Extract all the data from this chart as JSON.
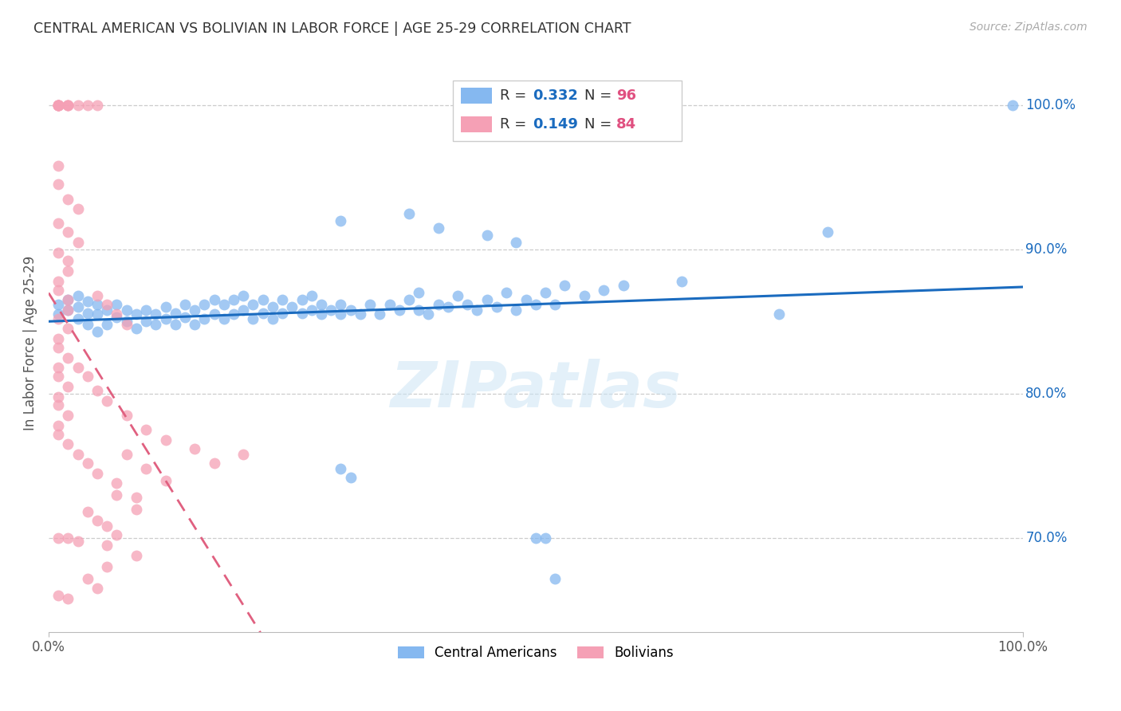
{
  "title": "CENTRAL AMERICAN VS BOLIVIAN IN LABOR FORCE | AGE 25-29 CORRELATION CHART",
  "source": "Source: ZipAtlas.com",
  "ylabel": "In Labor Force | Age 25-29",
  "ytick_labels": [
    "70.0%",
    "80.0%",
    "90.0%",
    "100.0%"
  ],
  "ytick_values": [
    0.7,
    0.8,
    0.9,
    1.0
  ],
  "xlim": [
    0.0,
    1.0
  ],
  "ylim": [
    0.635,
    1.035
  ],
  "blue_color": "#85b8f0",
  "pink_color": "#f5a0b5",
  "blue_line_color": "#1a6bbf",
  "pink_line_color": "#e06080",
  "pink_line_dash": "#e090a8",
  "R_blue": 0.332,
  "N_blue": 96,
  "R_pink": 0.149,
  "N_pink": 84,
  "legend_R_color": "#1a6bbf",
  "legend_N_color": "#e05080",
  "watermark": "ZIPatlas",
  "blue_scatter": [
    [
      0.01,
      0.855
    ],
    [
      0.01,
      0.862
    ],
    [
      0.02,
      0.858
    ],
    [
      0.02,
      0.865
    ],
    [
      0.03,
      0.852
    ],
    [
      0.03,
      0.86
    ],
    [
      0.03,
      0.868
    ],
    [
      0.04,
      0.848
    ],
    [
      0.04,
      0.856
    ],
    [
      0.04,
      0.864
    ],
    [
      0.05,
      0.843
    ],
    [
      0.05,
      0.855
    ],
    [
      0.05,
      0.862
    ],
    [
      0.06,
      0.848
    ],
    [
      0.06,
      0.858
    ],
    [
      0.07,
      0.853
    ],
    [
      0.07,
      0.862
    ],
    [
      0.08,
      0.85
    ],
    [
      0.08,
      0.858
    ],
    [
      0.09,
      0.845
    ],
    [
      0.09,
      0.855
    ],
    [
      0.1,
      0.85
    ],
    [
      0.1,
      0.858
    ],
    [
      0.11,
      0.848
    ],
    [
      0.11,
      0.855
    ],
    [
      0.12,
      0.852
    ],
    [
      0.12,
      0.86
    ],
    [
      0.13,
      0.848
    ],
    [
      0.13,
      0.856
    ],
    [
      0.14,
      0.853
    ],
    [
      0.14,
      0.862
    ],
    [
      0.15,
      0.848
    ],
    [
      0.15,
      0.858
    ],
    [
      0.16,
      0.852
    ],
    [
      0.16,
      0.862
    ],
    [
      0.17,
      0.855
    ],
    [
      0.17,
      0.865
    ],
    [
      0.18,
      0.852
    ],
    [
      0.18,
      0.862
    ],
    [
      0.19,
      0.855
    ],
    [
      0.19,
      0.865
    ],
    [
      0.2,
      0.858
    ],
    [
      0.2,
      0.868
    ],
    [
      0.21,
      0.852
    ],
    [
      0.21,
      0.862
    ],
    [
      0.22,
      0.856
    ],
    [
      0.22,
      0.865
    ],
    [
      0.23,
      0.852
    ],
    [
      0.23,
      0.86
    ],
    [
      0.24,
      0.856
    ],
    [
      0.24,
      0.865
    ],
    [
      0.25,
      0.86
    ],
    [
      0.26,
      0.856
    ],
    [
      0.26,
      0.865
    ],
    [
      0.27,
      0.858
    ],
    [
      0.27,
      0.868
    ],
    [
      0.28,
      0.855
    ],
    [
      0.28,
      0.862
    ],
    [
      0.29,
      0.858
    ],
    [
      0.3,
      0.855
    ],
    [
      0.3,
      0.862
    ],
    [
      0.31,
      0.858
    ],
    [
      0.32,
      0.855
    ],
    [
      0.33,
      0.862
    ],
    [
      0.34,
      0.855
    ],
    [
      0.35,
      0.862
    ],
    [
      0.36,
      0.858
    ],
    [
      0.37,
      0.865
    ],
    [
      0.38,
      0.858
    ],
    [
      0.38,
      0.87
    ],
    [
      0.39,
      0.855
    ],
    [
      0.4,
      0.862
    ],
    [
      0.41,
      0.86
    ],
    [
      0.42,
      0.868
    ],
    [
      0.43,
      0.862
    ],
    [
      0.44,
      0.858
    ],
    [
      0.45,
      0.865
    ],
    [
      0.46,
      0.86
    ],
    [
      0.47,
      0.87
    ],
    [
      0.48,
      0.858
    ],
    [
      0.49,
      0.865
    ],
    [
      0.5,
      0.862
    ],
    [
      0.51,
      0.87
    ],
    [
      0.52,
      0.862
    ],
    [
      0.53,
      0.875
    ],
    [
      0.55,
      0.868
    ],
    [
      0.57,
      0.872
    ],
    [
      0.59,
      0.875
    ],
    [
      0.3,
      0.748
    ],
    [
      0.31,
      0.742
    ],
    [
      0.5,
      0.7
    ],
    [
      0.51,
      0.7
    ],
    [
      0.52,
      0.672
    ],
    [
      0.65,
      0.878
    ],
    [
      0.75,
      0.855
    ],
    [
      0.8,
      0.912
    ],
    [
      0.99,
      1.0
    ],
    [
      0.3,
      0.92
    ],
    [
      0.37,
      0.925
    ],
    [
      0.4,
      0.915
    ],
    [
      0.45,
      0.91
    ],
    [
      0.48,
      0.905
    ]
  ],
  "pink_scatter": [
    [
      0.01,
      1.0
    ],
    [
      0.01,
      1.0
    ],
    [
      0.01,
      1.0
    ],
    [
      0.01,
      1.0
    ],
    [
      0.01,
      1.0
    ],
    [
      0.01,
      1.0
    ],
    [
      0.02,
      1.0
    ],
    [
      0.02,
      1.0
    ],
    [
      0.02,
      1.0
    ],
    [
      0.03,
      1.0
    ],
    [
      0.04,
      1.0
    ],
    [
      0.05,
      1.0
    ],
    [
      0.01,
      0.958
    ],
    [
      0.01,
      0.945
    ],
    [
      0.02,
      0.935
    ],
    [
      0.03,
      0.928
    ],
    [
      0.01,
      0.918
    ],
    [
      0.02,
      0.912
    ],
    [
      0.03,
      0.905
    ],
    [
      0.01,
      0.898
    ],
    [
      0.02,
      0.892
    ],
    [
      0.02,
      0.885
    ],
    [
      0.01,
      0.878
    ],
    [
      0.01,
      0.872
    ],
    [
      0.02,
      0.865
    ],
    [
      0.02,
      0.858
    ],
    [
      0.01,
      0.852
    ],
    [
      0.02,
      0.845
    ],
    [
      0.01,
      0.838
    ],
    [
      0.01,
      0.832
    ],
    [
      0.02,
      0.825
    ],
    [
      0.01,
      0.818
    ],
    [
      0.01,
      0.812
    ],
    [
      0.02,
      0.805
    ],
    [
      0.01,
      0.798
    ],
    [
      0.01,
      0.792
    ],
    [
      0.02,
      0.785
    ],
    [
      0.01,
      0.778
    ],
    [
      0.01,
      0.772
    ],
    [
      0.02,
      0.765
    ],
    [
      0.03,
      0.758
    ],
    [
      0.04,
      0.752
    ],
    [
      0.05,
      0.868
    ],
    [
      0.06,
      0.862
    ],
    [
      0.07,
      0.855
    ],
    [
      0.08,
      0.848
    ],
    [
      0.03,
      0.818
    ],
    [
      0.04,
      0.812
    ],
    [
      0.05,
      0.802
    ],
    [
      0.06,
      0.795
    ],
    [
      0.08,
      0.785
    ],
    [
      0.1,
      0.775
    ],
    [
      0.12,
      0.768
    ],
    [
      0.15,
      0.762
    ],
    [
      0.05,
      0.745
    ],
    [
      0.07,
      0.738
    ],
    [
      0.09,
      0.728
    ],
    [
      0.04,
      0.718
    ],
    [
      0.06,
      0.708
    ],
    [
      0.03,
      0.698
    ],
    [
      0.02,
      0.7
    ],
    [
      0.01,
      0.7
    ],
    [
      0.01,
      0.66
    ],
    [
      0.02,
      0.658
    ],
    [
      0.08,
      0.758
    ],
    [
      0.1,
      0.748
    ],
    [
      0.12,
      0.74
    ],
    [
      0.07,
      0.73
    ],
    [
      0.09,
      0.72
    ],
    [
      0.05,
      0.712
    ],
    [
      0.07,
      0.702
    ],
    [
      0.06,
      0.695
    ],
    [
      0.09,
      0.688
    ],
    [
      0.06,
      0.68
    ],
    [
      0.04,
      0.672
    ],
    [
      0.05,
      0.665
    ],
    [
      0.2,
      0.758
    ],
    [
      0.17,
      0.752
    ]
  ]
}
